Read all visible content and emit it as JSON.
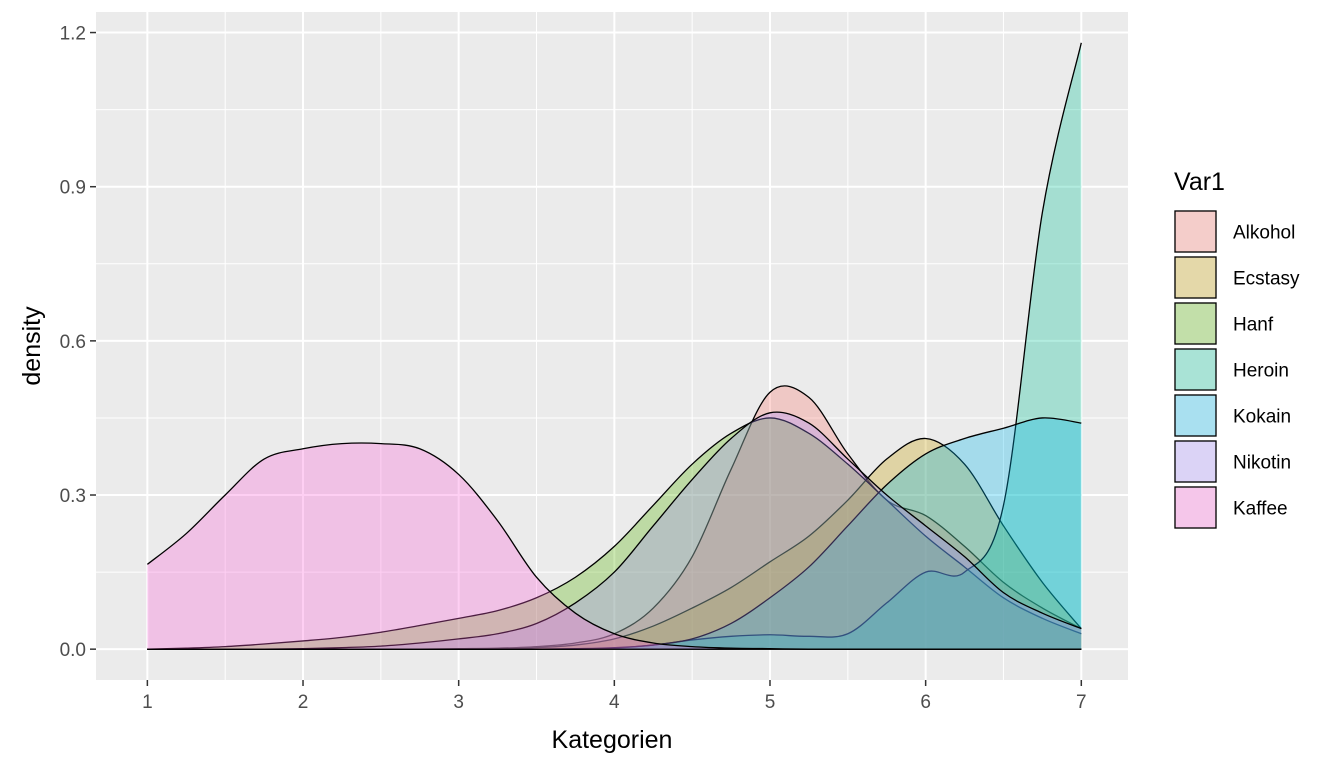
{
  "chart_data": {
    "type": "area",
    "title": "",
    "xlabel": "Kategorien",
    "ylabel": "density",
    "xlim": [
      0.67,
      7.3
    ],
    "ylim": [
      -0.06,
      1.24
    ],
    "x_ticks": [
      1,
      2,
      3,
      4,
      5,
      6,
      7
    ],
    "y_ticks": [
      0.0,
      0.3,
      0.6,
      0.9,
      1.2
    ],
    "y_tick_labels": [
      "0.0",
      "0.3",
      "0.6",
      "0.9",
      "1.2"
    ],
    "grid": true,
    "legend": {
      "title": "Var1",
      "placement": "right"
    },
    "series_x": [
      1,
      1.25,
      1.5,
      1.75,
      2,
      2.25,
      2.5,
      2.75,
      3,
      3.25,
      3.5,
      3.75,
      4,
      4.25,
      4.5,
      4.75,
      5,
      5.25,
      5.5,
      5.75,
      6,
      6.25,
      6.5,
      6.75,
      7
    ],
    "series": [
      {
        "name": "Alkohol",
        "color": "#F8766D",
        "values": [
          0.0,
          0.0,
          0.0,
          0.0,
          0.0,
          0.0,
          0.0,
          0.0,
          0.001,
          0.002,
          0.005,
          0.012,
          0.03,
          0.08,
          0.18,
          0.35,
          0.5,
          0.49,
          0.38,
          0.29,
          0.26,
          0.2,
          0.13,
          0.08,
          0.04
        ]
      },
      {
        "name": "Ecstasy",
        "color": "#C49A00",
        "values": [
          0.0,
          0.0,
          0.0,
          0.0,
          0.0,
          0.0,
          0.0,
          0.0,
          0.0,
          0.001,
          0.003,
          0.008,
          0.02,
          0.045,
          0.08,
          0.12,
          0.17,
          0.22,
          0.29,
          0.37,
          0.41,
          0.36,
          0.24,
          0.13,
          0.04
        ]
      },
      {
        "name": "Hanf",
        "color": "#53B400",
        "values": [
          0.0,
          0.002,
          0.005,
          0.01,
          0.016,
          0.023,
          0.033,
          0.046,
          0.06,
          0.075,
          0.1,
          0.14,
          0.2,
          0.28,
          0.36,
          0.42,
          0.45,
          0.42,
          0.36,
          0.29,
          0.22,
          0.16,
          0.1,
          0.06,
          0.03
        ]
      },
      {
        "name": "Heroin",
        "color": "#00C094",
        "values": [
          0.0,
          0.0,
          0.0,
          0.0,
          0.0,
          0.0,
          0.0,
          0.0,
          0.0,
          0.0,
          0.0,
          0.0,
          0.002,
          0.008,
          0.018,
          0.025,
          0.028,
          0.025,
          0.03,
          0.09,
          0.15,
          0.15,
          0.28,
          0.85,
          1.18
        ]
      },
      {
        "name": "Kokain",
        "color": "#00B6EB",
        "values": [
          0.0,
          0.0,
          0.0,
          0.0,
          0.0,
          0.0,
          0.0,
          0.0,
          0.0,
          0.0,
          0.0,
          0.001,
          0.003,
          0.008,
          0.02,
          0.05,
          0.1,
          0.16,
          0.24,
          0.32,
          0.38,
          0.41,
          0.43,
          0.45,
          0.44
        ]
      },
      {
        "name": "Nikotin",
        "color": "#A58AFF",
        "values": [
          0.0,
          0.0,
          0.0,
          0.0,
          0.001,
          0.003,
          0.006,
          0.012,
          0.02,
          0.03,
          0.05,
          0.09,
          0.15,
          0.24,
          0.33,
          0.41,
          0.46,
          0.44,
          0.37,
          0.3,
          0.24,
          0.18,
          0.11,
          0.07,
          0.04
        ]
      },
      {
        "name": "Kaffee",
        "color": "#FB61D7",
        "values": [
          0.165,
          0.225,
          0.3,
          0.37,
          0.39,
          0.4,
          0.4,
          0.39,
          0.34,
          0.25,
          0.14,
          0.07,
          0.03,
          0.012,
          0.005,
          0.002,
          0.001,
          0.0,
          0.0,
          0.0,
          0.0,
          0.0,
          0.0,
          0.0,
          0.0
        ]
      }
    ]
  }
}
